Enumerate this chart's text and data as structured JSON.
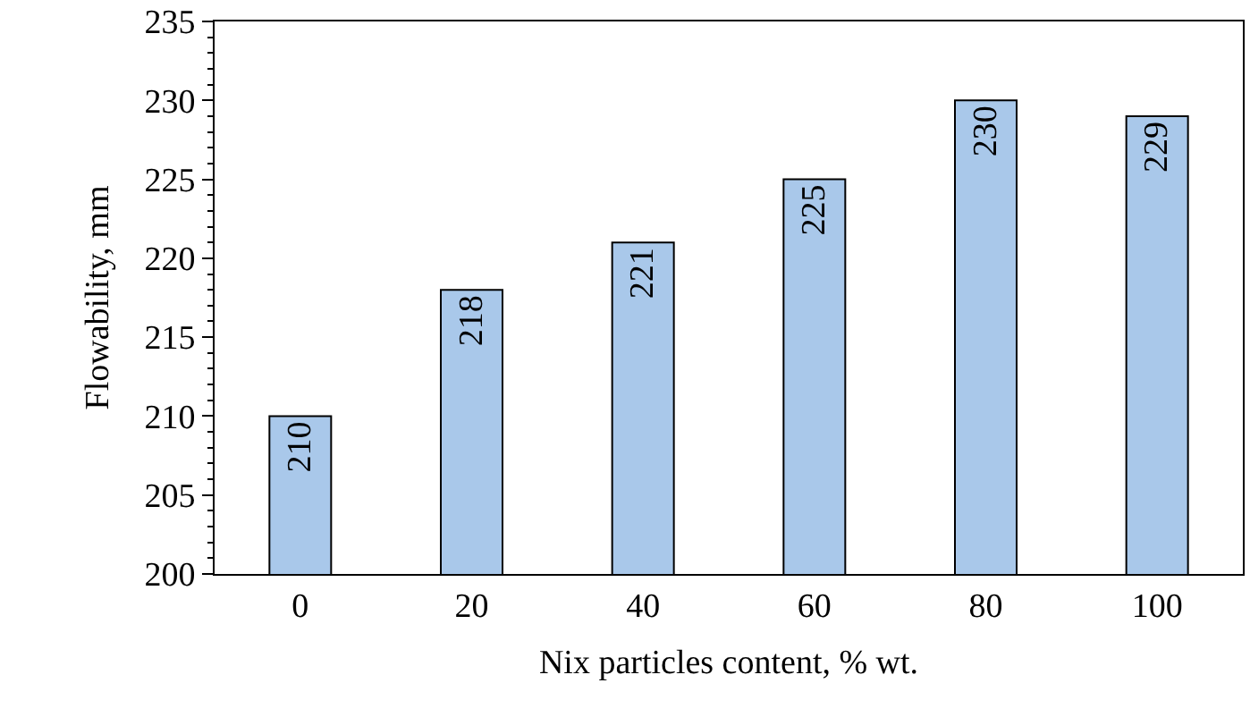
{
  "chart_data": {
    "type": "bar",
    "xlabel": "Nix particles content, % wt.",
    "ylabel": "Flowability, mm",
    "categories": [
      "0",
      "20",
      "40",
      "60",
      "80",
      "100"
    ],
    "values": [
      210,
      218,
      221,
      225,
      230,
      229
    ],
    "color": "#a9c8ea",
    "ylim": [
      200,
      235
    ],
    "yticks": [
      200,
      205,
      210,
      215,
      220,
      225,
      230,
      235
    ],
    "grid": false,
    "legend": false,
    "data_labels": true
  }
}
